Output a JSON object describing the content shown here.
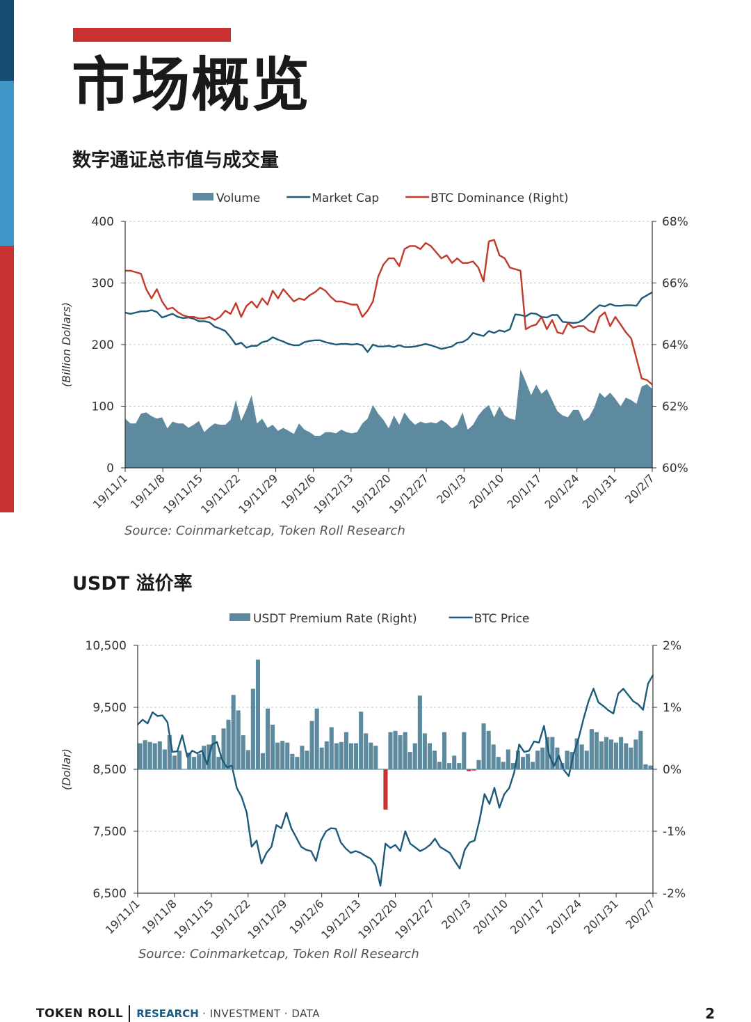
{
  "header": {
    "title": "市场概览"
  },
  "footer": {
    "brand": "TOKEN ROLL",
    "research": "RESEARCH",
    "rest": "· INVESTMENT · DATA",
    "page_number": "2"
  },
  "sections": [
    {
      "title": "数字通证总市值与成交量",
      "source": "Source: Coinmarketcap, Token Roll Research"
    },
    {
      "title": "USDT 溢价率",
      "source": "Source: Coinmarketcap, Token Roll Research"
    }
  ],
  "colors": {
    "volume": "#5d8a9e",
    "market_cap": "#1c5a7a",
    "btc_dominance": "#c0392b",
    "premium_pos": "#5d8a9e",
    "premium_neg": "#c83131",
    "btc_price": "#1c5a7a"
  },
  "chart_data": [
    {
      "type": "area",
      "y_left_label": "(Billion Dollars)",
      "y_left_ticks": [
        "400",
        "300",
        "200",
        "100",
        "0"
      ],
      "y_left_range": [
        0,
        400
      ],
      "y_right_ticks": [
        "68%",
        "66%",
        "64%",
        "62%",
        "60%"
      ],
      "y_right_range": [
        60,
        68
      ],
      "x_ticks": [
        "19/11/1",
        "19/11/8",
        "19/11/15",
        "19/11/22",
        "19/11/29",
        "19/12/6",
        "19/12/13",
        "19/12/20",
        "19/12/27",
        "20/1/3",
        "20/1/10",
        "20/1/17",
        "20/1/24",
        "20/1/31",
        "20/2/7"
      ],
      "legend_position": "top",
      "grid": "horizontal-dashed",
      "series": [
        {
          "name": "Volume",
          "kind": "area",
          "axis": "left",
          "values": [
            80,
            72,
            72,
            88,
            90,
            84,
            80,
            82,
            64,
            75,
            72,
            72,
            65,
            70,
            76,
            58,
            66,
            72,
            70,
            70,
            78,
            110,
            76,
            95,
            118,
            72,
            80,
            65,
            70,
            60,
            65,
            60,
            55,
            72,
            62,
            58,
            52,
            52,
            58,
            58,
            56,
            62,
            58,
            56,
            58,
            72,
            80,
            102,
            88,
            78,
            64,
            85,
            70,
            90,
            78,
            70,
            75,
            72,
            74,
            72,
            78,
            72,
            64,
            70,
            90,
            62,
            70,
            85,
            95,
            102,
            82,
            100,
            85,
            80,
            78,
            160,
            140,
            118,
            135,
            120,
            128,
            110,
            92,
            85,
            82,
            94,
            94,
            76,
            82,
            98,
            122,
            114,
            122,
            112,
            100,
            114,
            110,
            104,
            132,
            136,
            128
          ]
        },
        {
          "name": "Market Cap",
          "kind": "line",
          "axis": "left",
          "values": [
            252,
            250,
            252,
            254,
            254,
            256,
            253,
            244,
            247,
            250,
            245,
            243,
            244,
            242,
            238,
            238,
            236,
            229,
            226,
            222,
            212,
            200,
            203,
            195,
            198,
            198,
            204,
            206,
            212,
            208,
            205,
            201,
            199,
            199,
            204,
            206,
            207,
            207,
            204,
            202,
            200,
            201,
            201,
            200,
            201,
            199,
            188,
            200,
            197,
            197,
            198,
            196,
            199,
            196,
            196,
            197,
            199,
            201,
            199,
            196,
            193,
            195,
            197,
            203,
            204,
            209,
            219,
            216,
            214,
            222,
            219,
            223,
            221,
            225,
            249,
            248,
            246,
            251,
            250,
            245,
            244,
            248,
            248,
            237,
            236,
            235,
            236,
            241,
            249,
            257,
            264,
            262,
            266,
            263,
            263,
            264,
            264,
            263,
            275,
            280,
            285
          ]
        },
        {
          "name": "BTC Dominance (Right)",
          "kind": "line",
          "axis": "right",
          "values": [
            66.4,
            66.4,
            66.35,
            66.3,
            65.8,
            65.5,
            65.8,
            65.4,
            65.15,
            65.2,
            65.05,
            64.95,
            64.9,
            64.9,
            64.85,
            64.85,
            64.9,
            64.8,
            64.9,
            65.1,
            65.0,
            65.35,
            64.9,
            65.25,
            65.4,
            65.2,
            65.5,
            65.3,
            65.75,
            65.5,
            65.8,
            65.6,
            65.4,
            65.5,
            65.45,
            65.6,
            65.7,
            65.85,
            65.75,
            65.55,
            65.4,
            65.4,
            65.35,
            65.3,
            65.3,
            64.9,
            65.1,
            65.4,
            66.2,
            66.6,
            66.8,
            66.8,
            66.55,
            67.1,
            67.2,
            67.2,
            67.1,
            67.3,
            67.2,
            67.0,
            66.8,
            66.9,
            66.65,
            66.8,
            66.65,
            66.65,
            66.7,
            66.5,
            66.05,
            67.35,
            67.4,
            66.9,
            66.8,
            66.5,
            66.45,
            66.4,
            64.5,
            64.6,
            64.65,
            64.9,
            64.5,
            64.8,
            64.4,
            64.35,
            64.7,
            64.55,
            64.6,
            64.6,
            64.45,
            64.4,
            64.9,
            65.05,
            64.6,
            64.9,
            64.65,
            64.4,
            64.2,
            63.55,
            62.9,
            62.85,
            62.7
          ]
        }
      ]
    },
    {
      "type": "bar",
      "y_left_label": "(Dollar)",
      "y_left_ticks": [
        "10,500",
        "9,500",
        "8,500",
        "7,500",
        "6,500"
      ],
      "y_left_range": [
        6500,
        10500
      ],
      "y_right_ticks": [
        "2%",
        "1%",
        "0%",
        "-1%",
        "-2%"
      ],
      "y_right_range": [
        -2,
        2
      ],
      "x_ticks": [
        "19/11/1",
        "19/11/8",
        "19/11/15",
        "19/11/22",
        "19/11/29",
        "19/12/6",
        "19/12/13",
        "19/12/20",
        "19/12/27",
        "20/1/3",
        "20/1/10",
        "20/1/17",
        "20/1/24",
        "20/1/31",
        "20/2/7"
      ],
      "legend_position": "top",
      "grid": "horizontal-dashed",
      "series": [
        {
          "name": "USDT Premium Rate (Right)",
          "kind": "bar",
          "axis": "right",
          "values": [
            0.42,
            0.47,
            0.44,
            0.42,
            0.45,
            0.32,
            0.55,
            0.22,
            0.3,
            0,
            0.27,
            0.2,
            0.25,
            0.38,
            0.4,
            0.55,
            0.2,
            0.66,
            0.8,
            1.2,
            0.95,
            0.55,
            0.31,
            1.3,
            1.77,
            0.26,
            0.98,
            0.72,
            0.43,
            0.46,
            0.43,
            0.25,
            0.2,
            0.38,
            0.3,
            0.78,
            0.98,
            0.35,
            0.45,
            0.68,
            0.42,
            0.44,
            0.6,
            0.42,
            0.42,
            0.93,
            0.58,
            0.43,
            0.38,
            0,
            -0.65,
            0.6,
            0.62,
            0.55,
            0.6,
            0.28,
            0.42,
            1.19,
            0.58,
            0.42,
            0.3,
            0.12,
            0.6,
            0.1,
            0.22,
            0.1,
            0.6,
            -0.03,
            -0.02,
            0.15,
            0.74,
            0.62,
            0.4,
            0.2,
            0.12,
            0.32,
            0.1,
            0.3,
            0.2,
            0.25,
            0.12,
            0.3,
            0.35,
            0.52,
            0.52,
            0.35,
            0.1,
            0.3,
            0.28,
            0.5,
            0.4,
            0.3,
            0.65,
            0.6,
            0.45,
            0.52,
            0.48,
            0.43,
            0.52,
            0.42,
            0.35,
            0.48,
            0.62,
            0.08,
            0.06
          ]
        },
        {
          "name": "BTC Price",
          "kind": "line",
          "axis": "left",
          "values": [
            9220,
            9300,
            9240,
            9420,
            9360,
            9370,
            9260,
            8780,
            8790,
            9050,
            8700,
            8800,
            8760,
            8800,
            8580,
            8900,
            8940,
            8660,
            8530,
            8560,
            8200,
            8050,
            7800,
            7250,
            7350,
            6980,
            7150,
            7250,
            7600,
            7550,
            7800,
            7550,
            7400,
            7250,
            7200,
            7180,
            7020,
            7350,
            7500,
            7550,
            7540,
            7320,
            7220,
            7150,
            7180,
            7150,
            7100,
            7060,
            6950,
            6620,
            7300,
            7230,
            7280,
            7180,
            7500,
            7300,
            7240,
            7180,
            7220,
            7280,
            7380,
            7250,
            7200,
            7150,
            7020,
            6900,
            7200,
            7320,
            7350,
            7680,
            8100,
            7940,
            8200,
            7880,
            8100,
            8200,
            8450,
            8900,
            8780,
            8800,
            8950,
            8930,
            9200,
            8750,
            8550,
            8720,
            8490,
            8390,
            8750,
            9000,
            9320,
            9600,
            9800,
            9580,
            9520,
            9450,
            9400,
            9720,
            9800,
            9700,
            9600,
            9550,
            9460,
            9880,
            10020
          ]
        }
      ]
    }
  ]
}
